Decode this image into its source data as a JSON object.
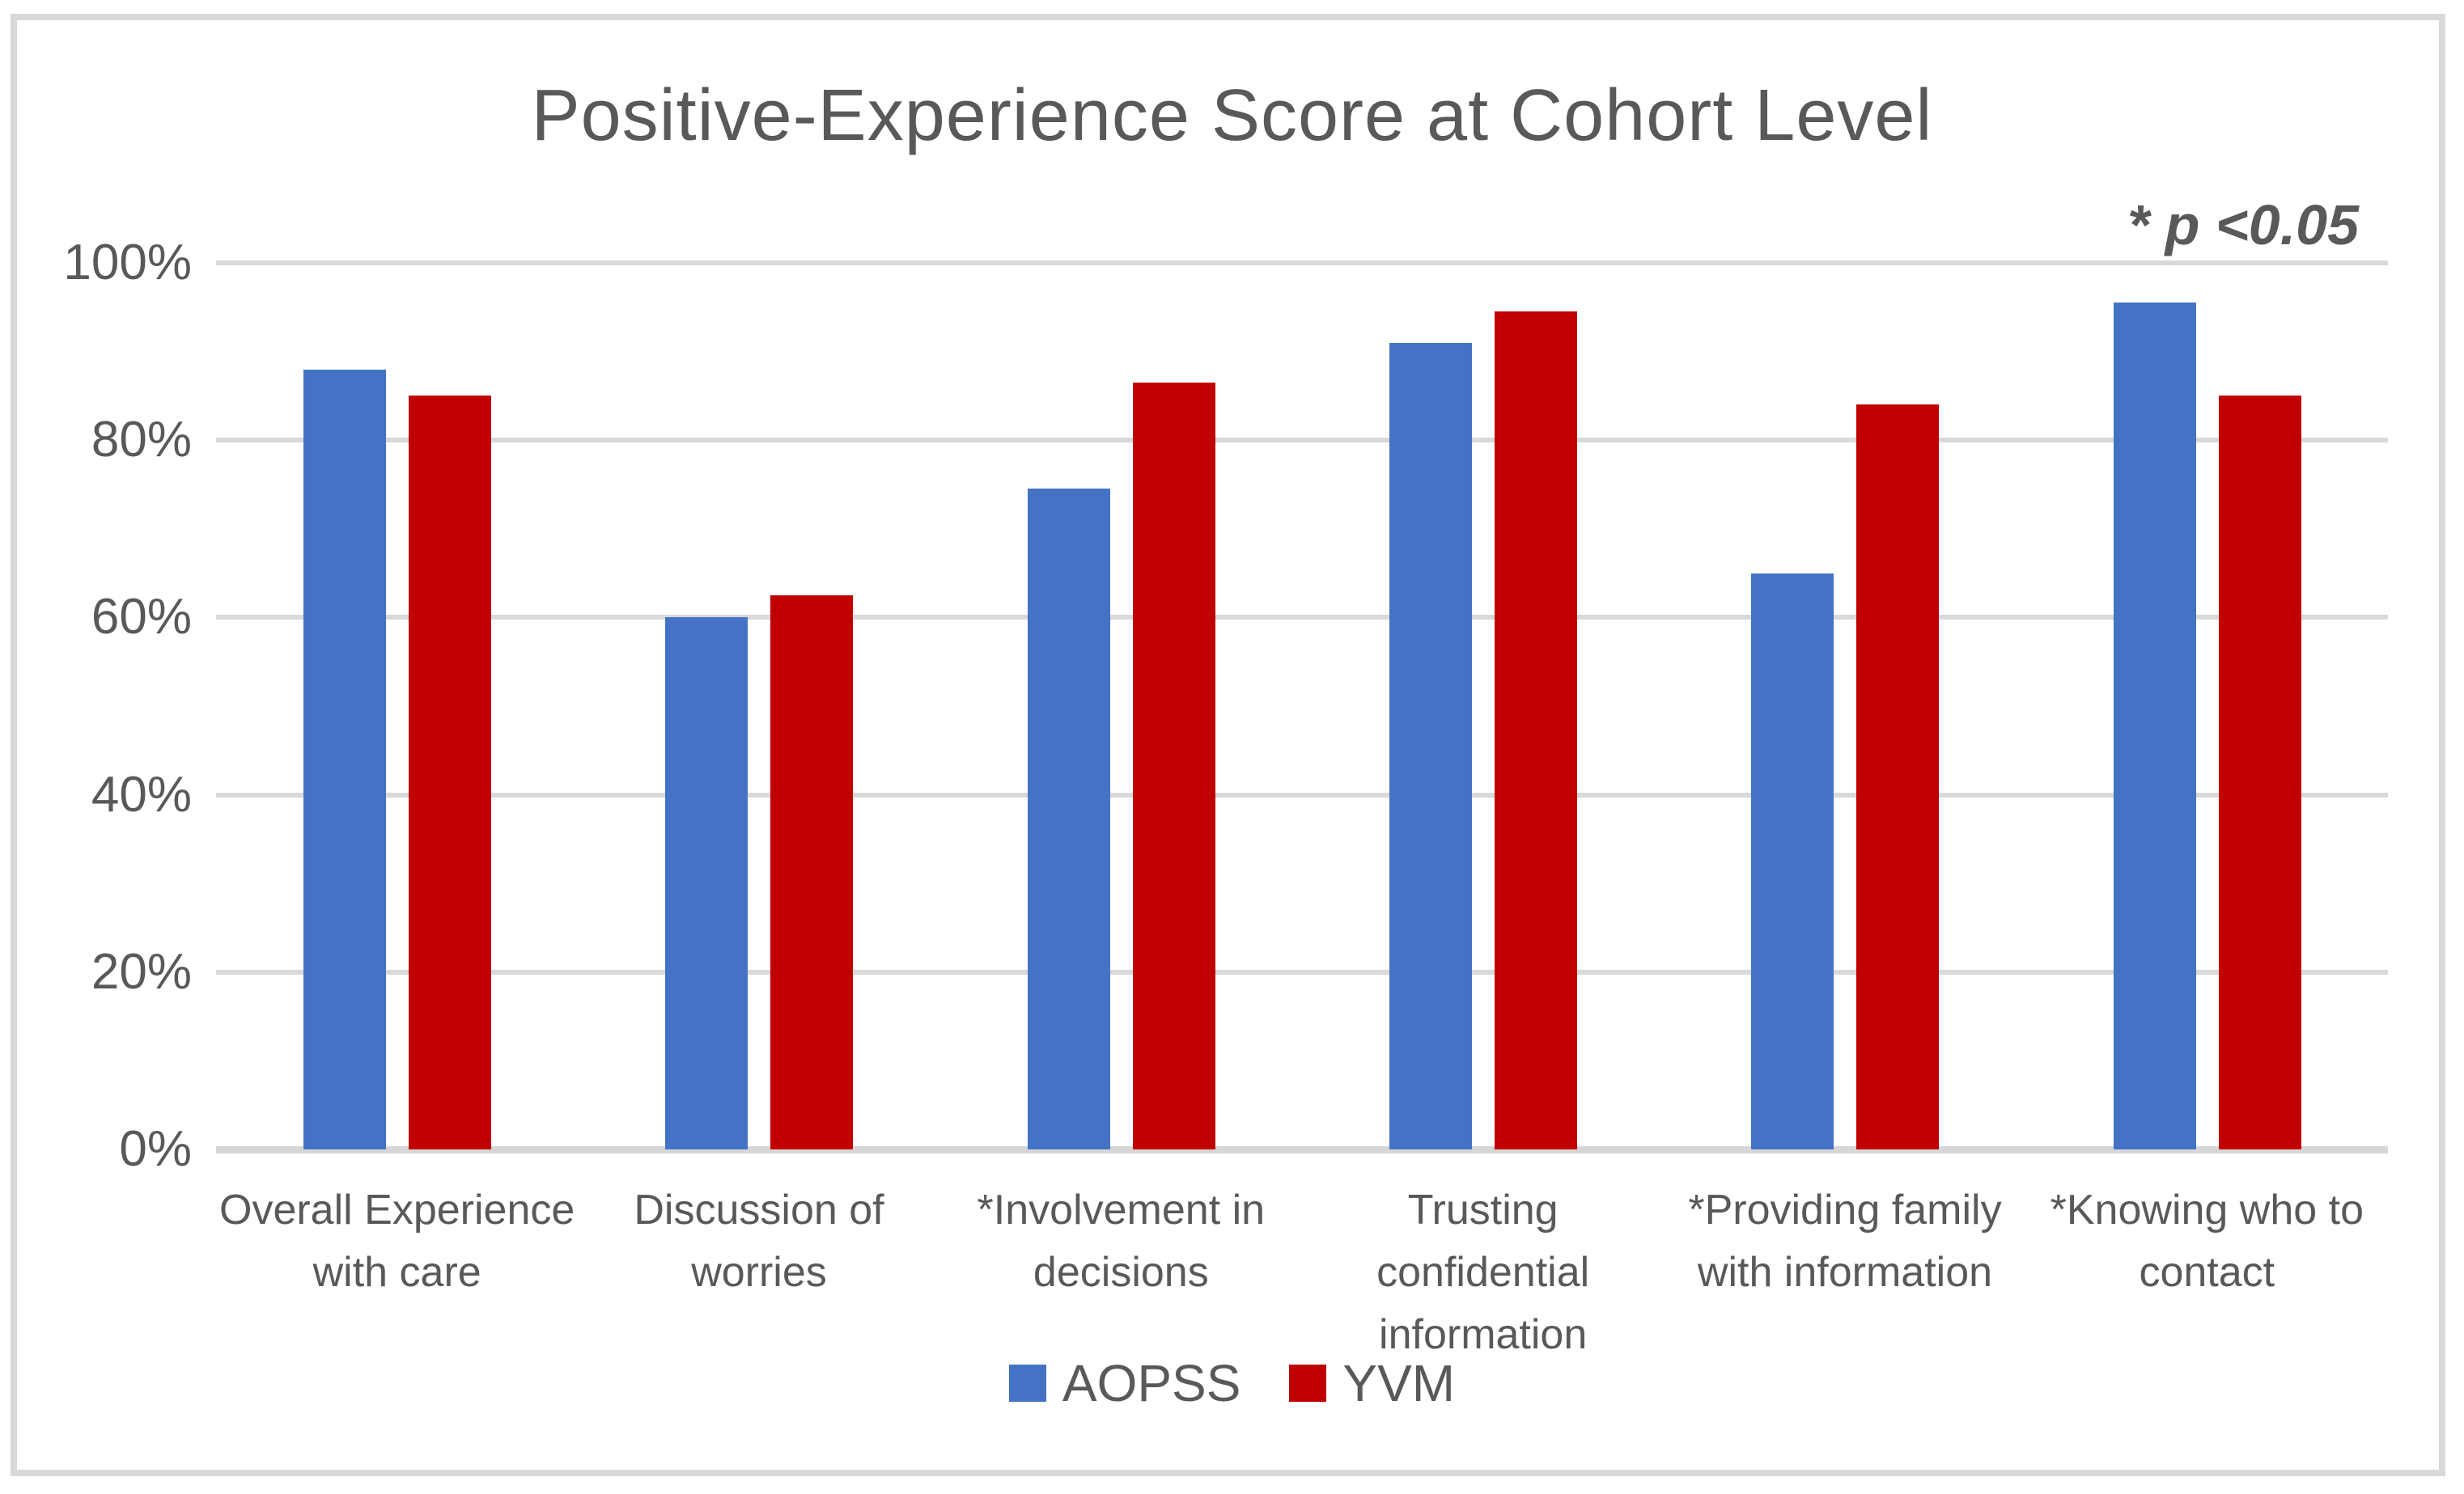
{
  "chart_data": {
    "type": "bar",
    "title": "Positive-Experience Score at Cohort Level",
    "annotation": "* p <0.05",
    "categories": [
      "Overall Experience\nwith care",
      "Discussion of\nworries",
      "*Involvement in\ndecisions",
      "Trusting\nconfidential\ninformation",
      "*Providing family\nwith information",
      "*Knowing who to\ncontact"
    ],
    "series": [
      {
        "name": "AOPSS",
        "color": "#4472C4",
        "values": [
          88,
          60,
          74.5,
          91,
          65,
          95.5
        ]
      },
      {
        "name": "YVM",
        "color": "#C00000",
        "values": [
          85,
          62.5,
          86.5,
          94.5,
          84,
          85
        ]
      }
    ],
    "yticks": [
      100,
      80,
      60,
      40,
      20,
      0
    ],
    "ytick_labels": [
      "100%",
      "80%",
      "60%",
      "40%",
      "20%",
      "0%"
    ],
    "ylim": [
      0,
      100
    ],
    "grid": "horizontal",
    "legend_position": "bottom",
    "colors": {
      "text": "#595959",
      "gridline": "#D9D9D9",
      "frame": "#D9D9D9",
      "background": "#FFFFFF"
    }
  }
}
